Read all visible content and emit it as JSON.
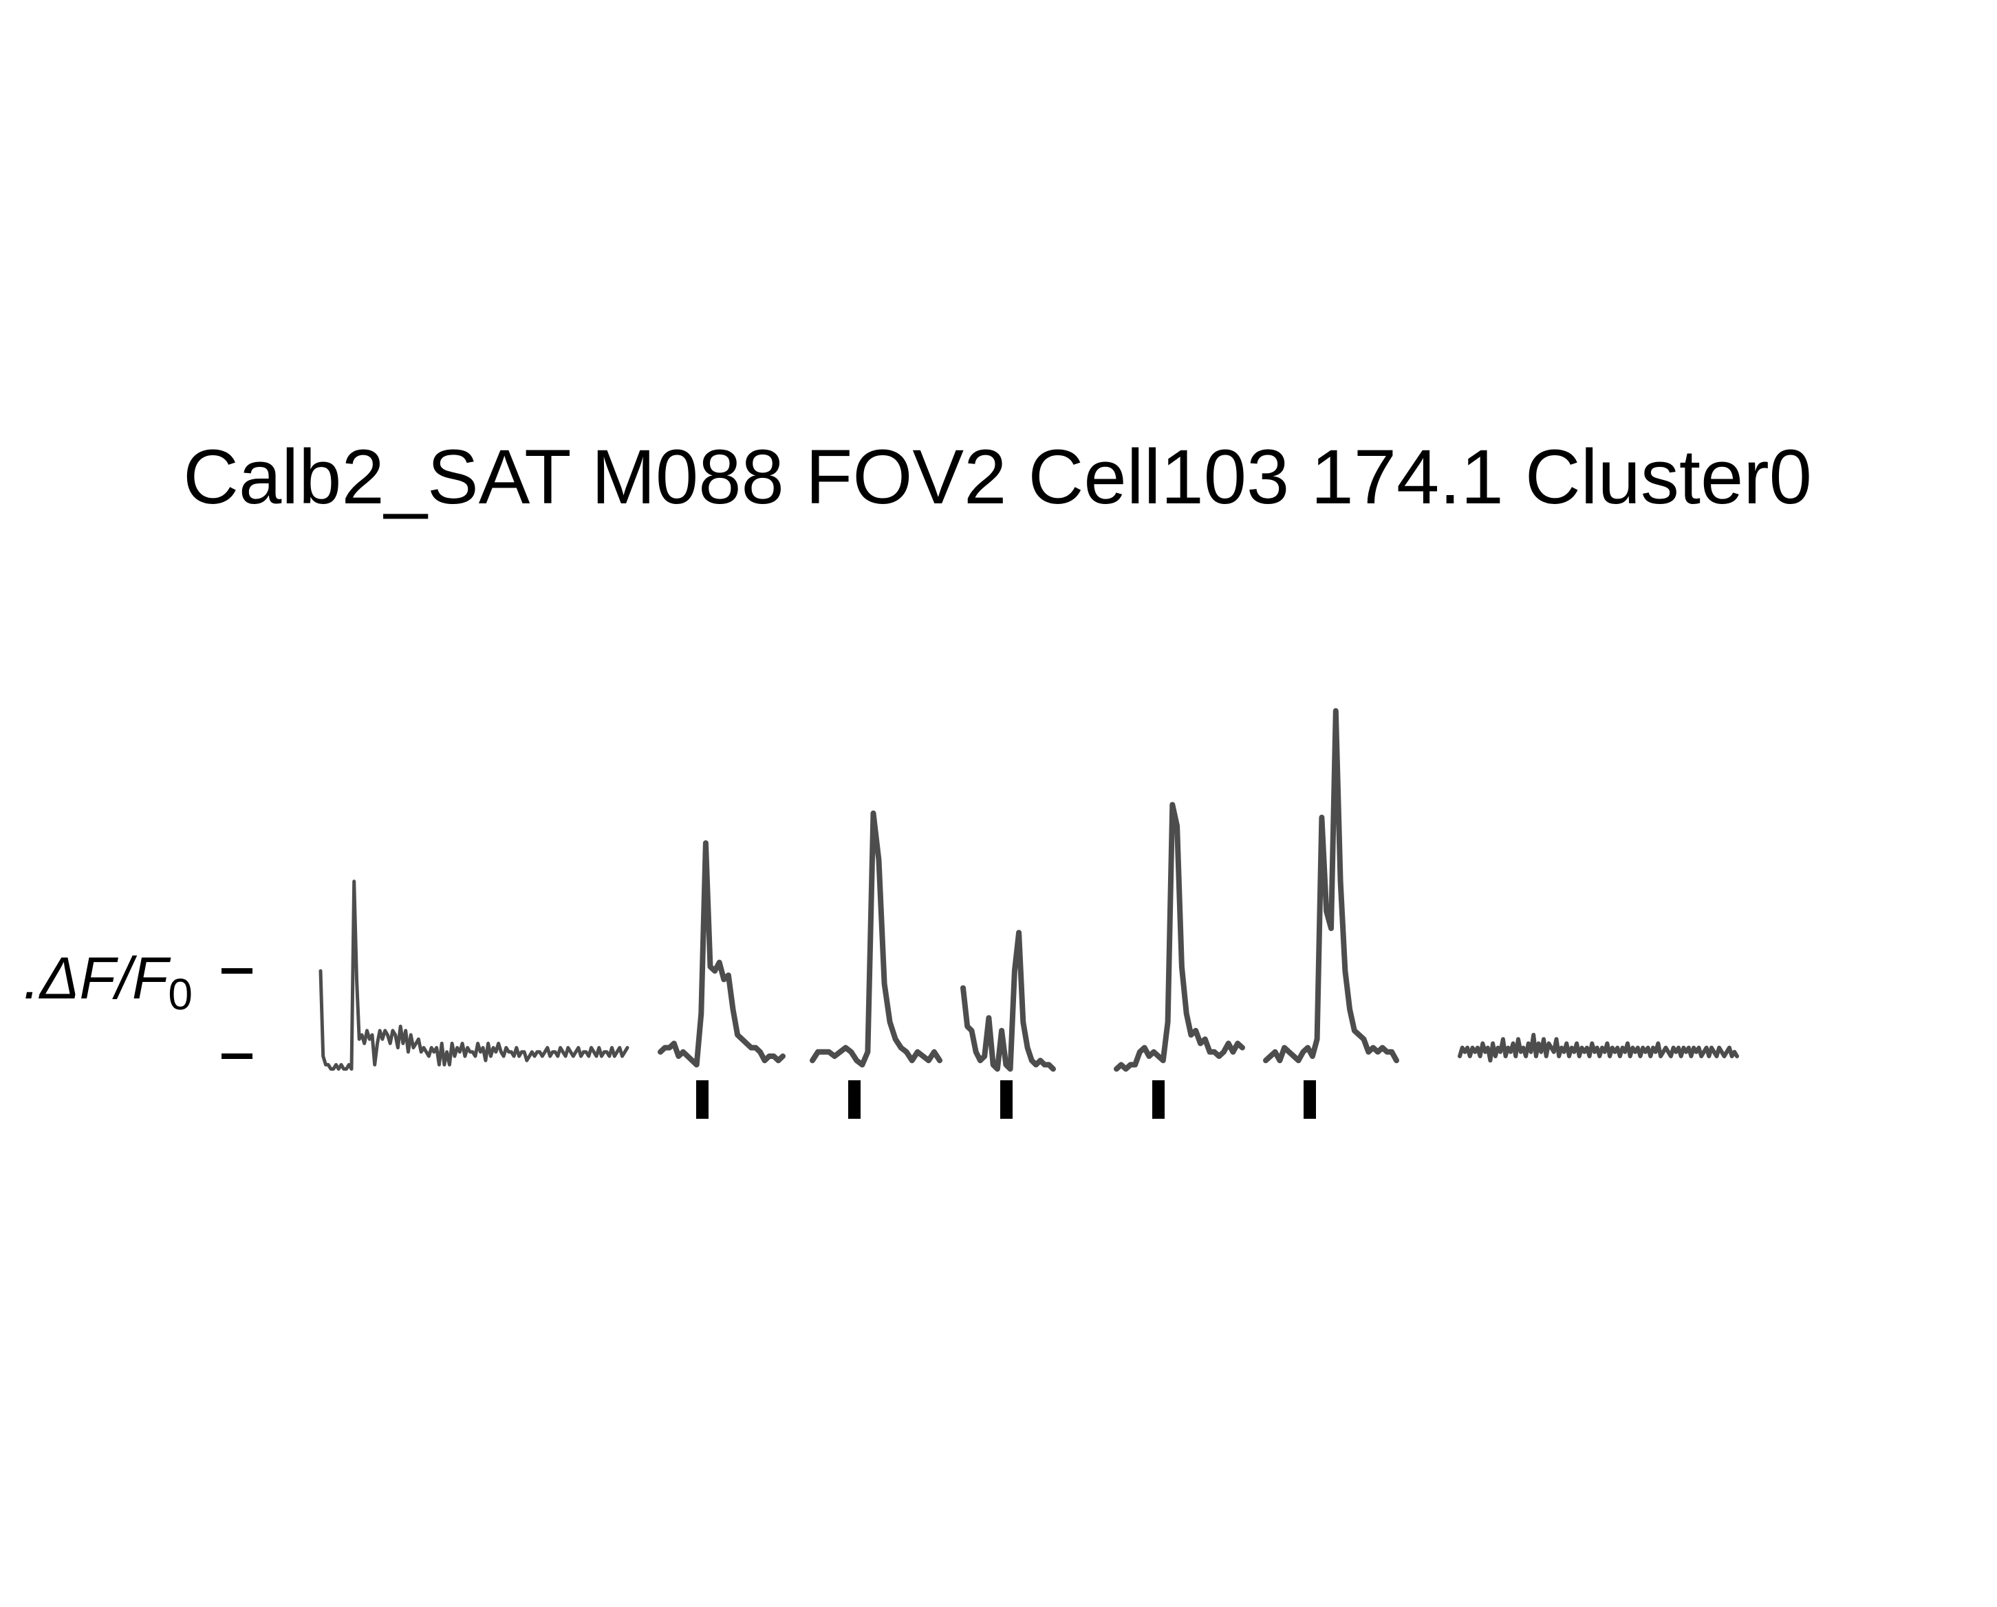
{
  "chart_data": {
    "type": "line",
    "title": "Calb2_SAT M088 FOV2 Cell103 174.1 Cluster0",
    "scale_bar": {
      "value_label": ".ΔF/F",
      "subscript": "0",
      "ticks": [
        0,
        1
      ],
      "tick_labels": [
        "",
        ""
      ]
    },
    "y_unit": "ΔF/F0",
    "line_color": "#4d4d4d",
    "marker_color": "#000000",
    "grid": false,
    "axes_visible": false,
    "segments": [
      {
        "name": "",
        "kind": "baseline_pre",
        "x": [
          0,
          1,
          2,
          3,
          4,
          5,
          6,
          7,
          8,
          9,
          10,
          11,
          12,
          13,
          14,
          15,
          16,
          17,
          18,
          19,
          20,
          21,
          22,
          23,
          24,
          25,
          26,
          27,
          28,
          29,
          30,
          31,
          32,
          33,
          34,
          35,
          36,
          37,
          38,
          39,
          40,
          41,
          42,
          43,
          44,
          45,
          46,
          47,
          48,
          49,
          50,
          51,
          52,
          53,
          54,
          55,
          56,
          57,
          58,
          59,
          60,
          61,
          62,
          63,
          64,
          65,
          66,
          67,
          68,
          69,
          70,
          71,
          72,
          73,
          74,
          75,
          76,
          77,
          78,
          79,
          80,
          81,
          82,
          83,
          84,
          85,
          86,
          87,
          88,
          89,
          90,
          91,
          92,
          93,
          94,
          95,
          96,
          97,
          98,
          99,
          100,
          101,
          102,
          103,
          104,
          105,
          106,
          107,
          108,
          109,
          110,
          111,
          112,
          113,
          114,
          115,
          116,
          117,
          118,
          119
        ],
        "y": [
          1.0,
          0.0,
          -0.1,
          -0.1,
          -0.15,
          -0.15,
          -0.1,
          -0.15,
          -0.1,
          -0.15,
          -0.15,
          -0.1,
          -0.15,
          2.05,
          0.9,
          0.2,
          0.25,
          0.15,
          0.3,
          0.2,
          0.25,
          -0.1,
          0.15,
          0.3,
          0.2,
          0.3,
          0.25,
          0.15,
          0.3,
          0.25,
          0.1,
          0.35,
          0.15,
          0.3,
          0.05,
          0.25,
          0.1,
          0.15,
          0.2,
          0.05,
          0.1,
          0.05,
          0.0,
          0.1,
          0.05,
          0.1,
          -0.1,
          0.15,
          -0.1,
          0.05,
          -0.1,
          0.15,
          0.0,
          0.1,
          0.05,
          0.15,
          0.0,
          0.1,
          0.05,
          0.05,
          0.0,
          0.15,
          0.05,
          0.1,
          -0.05,
          0.15,
          0.0,
          0.1,
          0.05,
          0.15,
          0.05,
          0.0,
          0.1,
          0.05,
          0.05,
          0.0,
          0.1,
          0.0,
          0.05,
          0.05,
          -0.05,
          0.0,
          0.05,
          0.0,
          0.05,
          0.05,
          0.0,
          0.05,
          0.1,
          0.0,
          0.05,
          0.05,
          0.0,
          0.1,
          0.05,
          0.0,
          0.1,
          0.05,
          0.0,
          0.05,
          0.1,
          0.0,
          0.05,
          0.05,
          0.0,
          0.1,
          0.05,
          0.0,
          0.1,
          0.0,
          0.05,
          0.05,
          0.0,
          0.1,
          0.0,
          0.05,
          0.1,
          0.0,
          0.05,
          0.1
        ]
      },
      {
        "name": "",
        "kind": "trial",
        "x": [
          0,
          1,
          2,
          3,
          4,
          5,
          6,
          7,
          8,
          9,
          10,
          11,
          12,
          13,
          14,
          15,
          16,
          17,
          18,
          19,
          20,
          21,
          22,
          23,
          24,
          25,
          26,
          27
        ],
        "y": [
          0.05,
          0.1,
          0.1,
          0.15,
          0.0,
          0.05,
          0.0,
          -0.05,
          -0.1,
          0.5,
          2.5,
          1.05,
          1.0,
          1.1,
          0.9,
          0.95,
          0.55,
          0.25,
          0.2,
          0.15,
          0.1,
          0.1,
          0.05,
          -0.05,
          0.0,
          0.0,
          -0.05,
          0.0
        ]
      },
      {
        "name": "",
        "kind": "trial",
        "x": [
          0,
          1,
          2,
          3,
          4,
          5,
          6,
          7,
          8,
          9,
          10,
          11,
          12,
          13,
          14,
          15,
          16,
          17,
          18,
          19,
          20,
          21,
          22,
          23
        ],
        "y": [
          -0.05,
          0.05,
          0.05,
          0.05,
          0.0,
          0.05,
          0.1,
          0.05,
          -0.05,
          -0.1,
          0.05,
          2.85,
          2.3,
          0.85,
          0.4,
          0.2,
          0.1,
          0.05,
          -0.05,
          0.05,
          0.0,
          -0.05,
          0.05,
          -0.05
        ]
      },
      {
        "name": "",
        "kind": "trial",
        "x": [
          0,
          1,
          2,
          3,
          4,
          5,
          6,
          7,
          8,
          9,
          10,
          11,
          12,
          13,
          14,
          15,
          16,
          17,
          18,
          19,
          20,
          21
        ],
        "y": [
          0.8,
          0.35,
          0.3,
          0.05,
          -0.05,
          0.0,
          0.45,
          -0.1,
          -0.15,
          0.3,
          -0.1,
          -0.15,
          1.0,
          1.45,
          0.4,
          0.1,
          -0.05,
          -0.1,
          -0.05,
          -0.1,
          -0.1,
          -0.15
        ]
      },
      {
        "name": "",
        "kind": "trial",
        "x": [
          0,
          1,
          2,
          3,
          4,
          5,
          6,
          7,
          8,
          9,
          10,
          11,
          12,
          13,
          14,
          15,
          16,
          17,
          18,
          19,
          20,
          21,
          22,
          23,
          24,
          25,
          26,
          27
        ],
        "y": [
          -0.15,
          -0.1,
          -0.15,
          -0.1,
          -0.1,
          0.05,
          0.1,
          0.0,
          0.05,
          0.0,
          -0.05,
          0.4,
          2.95,
          2.7,
          1.05,
          0.5,
          0.25,
          0.3,
          0.15,
          0.2,
          0.05,
          0.05,
          0.0,
          0.05,
          0.15,
          0.05,
          0.15,
          0.1
        ]
      },
      {
        "name": "",
        "kind": "trial",
        "x": [
          0,
          1,
          2,
          3,
          4,
          5,
          6,
          7,
          8,
          9,
          10,
          11,
          12,
          13,
          14,
          15,
          16,
          17,
          18,
          19,
          20,
          21,
          22,
          23,
          24,
          25,
          26,
          27,
          28
        ],
        "y": [
          -0.05,
          0.0,
          0.05,
          -0.05,
          0.1,
          0.05,
          0.0,
          -0.05,
          0.05,
          0.1,
          0.0,
          0.2,
          2.8,
          1.7,
          1.5,
          4.05,
          2.05,
          1.0,
          0.55,
          0.3,
          0.25,
          0.2,
          0.05,
          0.1,
          0.05,
          0.1,
          0.05,
          0.05,
          -0.05
        ]
      },
      {
        "name": "",
        "kind": "baseline_post",
        "x": [
          0,
          1,
          2,
          3,
          4,
          5,
          6,
          7,
          8,
          9,
          10,
          11,
          12,
          13,
          14,
          15,
          16,
          17,
          18,
          19,
          20,
          21,
          22,
          23,
          24,
          25,
          26,
          27,
          28,
          29,
          30,
          31,
          32,
          33,
          34,
          35,
          36,
          37,
          38,
          39,
          40,
          41,
          42,
          43,
          44,
          45,
          46,
          47,
          48,
          49,
          50,
          51,
          52,
          53,
          54,
          55,
          56,
          57,
          58,
          59,
          60,
          61,
          62,
          63,
          64,
          65,
          66,
          67,
          68,
          69,
          70,
          71,
          72,
          73,
          74,
          75,
          76,
          77,
          78,
          79,
          80,
          81,
          82,
          83,
          84,
          85,
          86,
          87,
          88,
          89,
          90,
          91,
          92,
          93,
          94,
          95,
          96,
          97,
          98,
          99,
          100,
          101,
          102,
          103,
          104,
          105,
          106,
          107,
          108,
          109
        ],
        "y": [
          0.0,
          0.1,
          0.05,
          0.1,
          0.0,
          0.1,
          0.05,
          0.1,
          0.0,
          0.15,
          0.05,
          0.1,
          -0.05,
          0.15,
          0.0,
          0.1,
          0.05,
          0.2,
          0.0,
          0.1,
          0.05,
          0.15,
          0.0,
          0.2,
          0.05,
          0.1,
          0.0,
          0.15,
          0.05,
          0.25,
          0.0,
          0.15,
          0.05,
          0.2,
          0.0,
          0.15,
          0.1,
          0.05,
          0.2,
          0.0,
          0.1,
          0.05,
          0.15,
          0.0,
          0.1,
          0.05,
          0.15,
          0.0,
          0.1,
          0.05,
          0.1,
          0.0,
          0.15,
          0.05,
          0.1,
          0.0,
          0.1,
          0.05,
          0.15,
          0.0,
          0.1,
          0.05,
          0.1,
          0.0,
          0.1,
          0.05,
          0.15,
          0.0,
          0.1,
          0.05,
          0.1,
          0.0,
          0.1,
          0.05,
          0.1,
          0.0,
          0.1,
          0.05,
          0.15,
          0.0,
          0.05,
          0.1,
          0.05,
          0.0,
          0.1,
          0.05,
          0.1,
          0.0,
          0.1,
          0.05,
          0.1,
          0.0,
          0.1,
          0.05,
          0.1,
          0.0,
          0.05,
          0.1,
          0.0,
          0.1,
          0.05,
          0.0,
          0.1,
          0.05,
          0.0,
          0.05,
          0.1,
          0.0,
          0.05,
          0.0
        ]
      }
    ],
    "stimulus_markers": [
      1,
      2,
      3,
      4,
      5
    ]
  }
}
